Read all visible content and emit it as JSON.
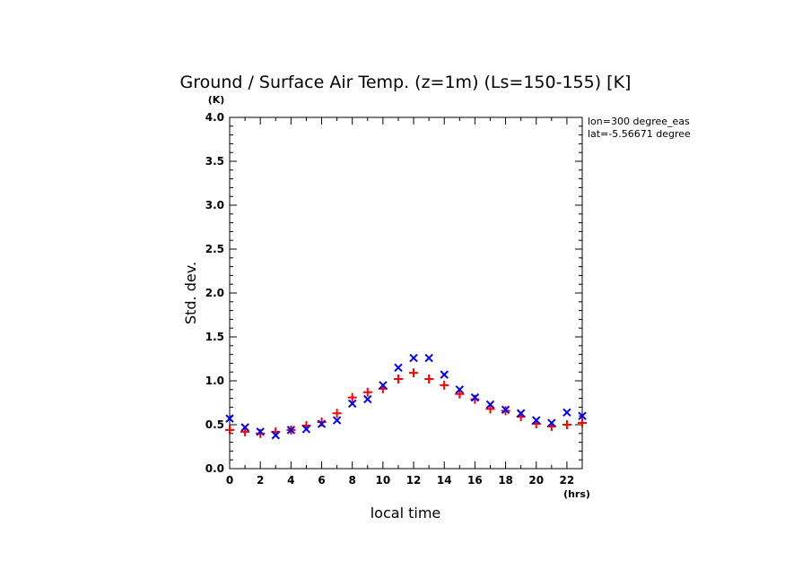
{
  "chart_data": {
    "type": "scatter",
    "title": "Ground / Surface Air Temp. (z=1m) (Ls=150-155) [K]",
    "xlabel": "local time",
    "ylabel": "Std. dev.",
    "x_unit": "(hrs)",
    "y_unit": "(K)",
    "xlim": [
      0,
      23
    ],
    "ylim": [
      0.0,
      4.0
    ],
    "x_ticks": [
      0,
      2,
      4,
      6,
      8,
      10,
      12,
      14,
      16,
      18,
      20,
      22
    ],
    "y_ticks": [
      "0.0",
      "0.5",
      "1.0",
      "1.5",
      "2.0",
      "2.5",
      "3.0",
      "3.5",
      "4.0"
    ],
    "annotations": [
      "lon=300 degree_eas",
      "lat=-5.56671 degree"
    ],
    "grid": false,
    "x": [
      0,
      1,
      2,
      3,
      4,
      5,
      6,
      7,
      8,
      9,
      10,
      11,
      12,
      13,
      14,
      15,
      16,
      17,
      18,
      19,
      20,
      21,
      22,
      23
    ],
    "series": [
      {
        "marker": "+",
        "color": "#ff0000",
        "values": [
          0.44,
          0.42,
          0.4,
          0.42,
          0.44,
          0.49,
          0.53,
          0.63,
          0.81,
          0.87,
          0.91,
          1.02,
          1.09,
          1.02,
          0.95,
          0.85,
          0.79,
          0.68,
          0.66,
          0.59,
          0.51,
          0.48,
          0.5,
          0.52
        ]
      },
      {
        "marker": "x",
        "color": "#0000ff",
        "values": [
          0.57,
          0.47,
          0.42,
          0.38,
          0.44,
          0.45,
          0.51,
          0.55,
          0.74,
          0.79,
          0.95,
          1.15,
          1.26,
          1.26,
          1.07,
          0.9,
          0.81,
          0.73,
          0.67,
          0.63,
          0.55,
          0.52,
          0.64,
          0.6
        ]
      }
    ]
  }
}
